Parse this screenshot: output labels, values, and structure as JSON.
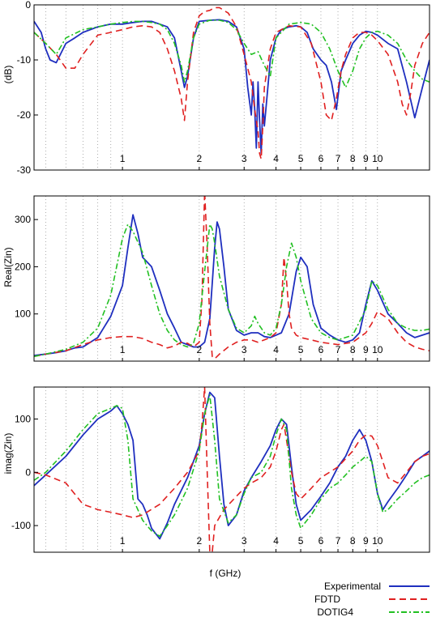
{
  "chart_data": [
    {
      "type": "line",
      "ylabel": "(dB)",
      "xscale": "log",
      "xlim": [
        0.45,
        16
      ],
      "ylim": [
        -30,
        0
      ],
      "yticks": [
        0,
        -10,
        -20,
        -30
      ],
      "xtick_labels": [
        "1",
        "2",
        "3",
        "4",
        "5",
        "6",
        "7",
        "8",
        "9",
        "10"
      ],
      "grid": "vertical dotted",
      "series": [
        {
          "name": "Experimental",
          "color": "#1f2fbf",
          "style": "solid",
          "x": [
            0.45,
            0.48,
            0.5,
            0.52,
            0.55,
            0.6,
            0.65,
            0.7,
            0.8,
            0.9,
            1.0,
            1.1,
            1.2,
            1.3,
            1.4,
            1.5,
            1.6,
            1.7,
            1.75,
            1.8,
            1.9,
            2.0,
            2.2,
            2.4,
            2.6,
            2.8,
            3.0,
            3.1,
            3.2,
            3.25,
            3.3,
            3.35,
            3.4,
            3.45,
            3.5,
            3.55,
            3.6,
            3.7,
            3.8,
            4.0,
            4.2,
            4.5,
            4.8,
            5.0,
            5.3,
            5.6,
            6.0,
            6.3,
            6.6,
            6.9,
            7.2,
            7.5,
            8.0,
            8.5,
            9.0,
            9.5,
            10,
            11,
            12,
            13,
            14,
            15,
            16
          ],
          "y": [
            -3,
            -5,
            -8,
            -10,
            -10.5,
            -7,
            -6,
            -5,
            -4,
            -3.5,
            -3.5,
            -3.2,
            -3,
            -3,
            -3.5,
            -4,
            -6,
            -12,
            -15,
            -13,
            -6,
            -3,
            -2.8,
            -2.7,
            -3,
            -4,
            -8,
            -15,
            -20,
            -14,
            -19,
            -26,
            -14,
            -21,
            -27,
            -18,
            -22,
            -16,
            -10,
            -6,
            -4.5,
            -4,
            -3.8,
            -4,
            -5,
            -8,
            -10,
            -11,
            -14,
            -19,
            -12,
            -10,
            -7,
            -5.5,
            -4.8,
            -5,
            -5.5,
            -7,
            -8,
            -14,
            -20.5,
            -15,
            -10
          ]
        },
        {
          "name": "FDTD",
          "color": "#e02020",
          "style": "dashed",
          "x": [
            0.45,
            0.5,
            0.55,
            0.6,
            0.65,
            0.7,
            0.8,
            0.9,
            1.0,
            1.1,
            1.2,
            1.3,
            1.4,
            1.5,
            1.6,
            1.7,
            1.75,
            1.8,
            1.9,
            2.0,
            2.1,
            2.2,
            2.3,
            2.4,
            2.6,
            2.8,
            3.0,
            3.2,
            3.3,
            3.4,
            3.45,
            3.5,
            3.55,
            3.6,
            3.8,
            4.0,
            4.5,
            5.0,
            5.5,
            6.0,
            6.3,
            6.6,
            6.9,
            7.2,
            7.5,
            8.0,
            8.5,
            9.0,
            9.5,
            10,
            11,
            12,
            12.5,
            13,
            13.5,
            14,
            15,
            16
          ],
          "y": [
            -5,
            -7,
            -9,
            -11.5,
            -11.5,
            -9,
            -5.5,
            -5,
            -4.5,
            -4,
            -3.8,
            -4,
            -5,
            -8,
            -12,
            -17,
            -21,
            -14,
            -5,
            -2,
            -1.2,
            -1,
            -0.5,
            -0.5,
            -1.5,
            -4,
            -9,
            -14,
            -19,
            -23,
            -27,
            -28,
            -22,
            -15,
            -8,
            -5,
            -3.8,
            -4,
            -7,
            -14,
            -20,
            -21,
            -17,
            -12,
            -9,
            -6,
            -5,
            -5,
            -5.5,
            -6.5,
            -9,
            -14,
            -18,
            -20,
            -16,
            -11,
            -7,
            -5
          ]
        },
        {
          "name": "DOTIG4",
          "color": "#22c022",
          "style": "dashdot",
          "x": [
            0.45,
            0.5,
            0.55,
            0.6,
            0.7,
            0.8,
            0.9,
            1.0,
            1.1,
            1.2,
            1.3,
            1.4,
            1.5,
            1.6,
            1.7,
            1.75,
            1.8,
            1.9,
            2.0,
            2.2,
            2.4,
            2.6,
            2.8,
            3.0,
            3.2,
            3.4,
            3.6,
            3.8,
            4.0,
            4.5,
            5.0,
            5.5,
            6.0,
            6.5,
            7.0,
            7.5,
            8.0,
            8.5,
            9.0,
            9.5,
            10,
            11,
            12,
            13,
            14,
            15,
            16
          ],
          "y": [
            -5,
            -7,
            -9,
            -6,
            -4.5,
            -4,
            -3.5,
            -3.2,
            -3,
            -3,
            -3.2,
            -3.5,
            -4.5,
            -7,
            -11,
            -14,
            -12,
            -6,
            -3.5,
            -2.8,
            -2.8,
            -3.2,
            -4.5,
            -7,
            -9,
            -8.5,
            -11,
            -13,
            -6,
            -3.5,
            -3.2,
            -3.5,
            -5,
            -8,
            -12,
            -15,
            -12,
            -8,
            -6,
            -5,
            -4.8,
            -5.5,
            -7,
            -10,
            -12,
            -13.5,
            -14
          ]
        }
      ]
    },
    {
      "type": "line",
      "ylabel": "Real(Zin)",
      "xscale": "log",
      "xlim": [
        0.45,
        16
      ],
      "ylim": [
        0,
        350
      ],
      "yticks": [
        100,
        200,
        300
      ],
      "xtick_labels": [
        "1",
        "2",
        "3",
        "4",
        "5",
        "6",
        "7",
        "8",
        "9",
        "10"
      ],
      "grid": "vertical dotted",
      "series": [
        {
          "name": "Experimental",
          "color": "#1f2fbf",
          "style": "solid",
          "x": [
            0.45,
            0.5,
            0.55,
            0.6,
            0.65,
            0.7,
            0.8,
            0.9,
            1.0,
            1.05,
            1.1,
            1.15,
            1.2,
            1.3,
            1.4,
            1.5,
            1.6,
            1.7,
            1.8,
            1.9,
            2.0,
            2.1,
            2.2,
            2.3,
            2.35,
            2.4,
            2.5,
            2.6,
            2.8,
            3.0,
            3.2,
            3.4,
            3.6,
            3.8,
            4.0,
            4.2,
            4.5,
            4.8,
            5.0,
            5.3,
            5.6,
            6.0,
            6.5,
            7.0,
            7.5,
            8.0,
            8.5,
            9.0,
            9.5,
            10,
            11,
            12,
            13,
            14,
            15,
            16
          ],
          "y": [
            12,
            15,
            18,
            22,
            28,
            30,
            50,
            95,
            160,
            240,
            310,
            270,
            220,
            200,
            150,
            100,
            70,
            40,
            35,
            30,
            30,
            40,
            90,
            240,
            295,
            280,
            200,
            110,
            65,
            55,
            60,
            60,
            52,
            50,
            55,
            60,
            100,
            190,
            220,
            200,
            120,
            70,
            55,
            45,
            40,
            45,
            60,
            120,
            170,
            150,
            100,
            80,
            60,
            50,
            55,
            60
          ]
        },
        {
          "name": "FDTD",
          "color": "#e02020",
          "style": "dashed",
          "x": [
            0.45,
            0.5,
            0.6,
            0.7,
            0.8,
            0.9,
            1.0,
            1.1,
            1.2,
            1.3,
            1.4,
            1.5,
            1.6,
            1.7,
            1.8,
            1.9,
            2.0,
            2.05,
            2.1,
            2.15,
            2.2,
            2.25,
            2.3,
            2.4,
            2.6,
            2.8,
            3.0,
            3.2,
            3.4,
            3.6,
            3.8,
            4.0,
            4.2,
            4.3,
            4.4,
            4.5,
            4.6,
            4.8,
            5.0,
            5.5,
            6.0,
            7.0,
            8.0,
            9.0,
            9.5,
            10,
            11,
            12,
            13,
            14,
            15,
            16
          ],
          "y": [
            10,
            15,
            22,
            35,
            45,
            50,
            52,
            52,
            48,
            40,
            35,
            28,
            32,
            40,
            38,
            30,
            40,
            130,
            360,
            240,
            80,
            10,
            5,
            15,
            30,
            40,
            45,
            45,
            40,
            45,
            50,
            60,
            120,
            220,
            170,
            100,
            70,
            55,
            50,
            45,
            40,
            35,
            40,
            60,
            80,
            105,
            90,
            60,
            40,
            30,
            25,
            22
          ]
        },
        {
          "name": "DOTIG4",
          "color": "#22c022",
          "style": "dashdot",
          "x": [
            0.45,
            0.5,
            0.6,
            0.7,
            0.8,
            0.9,
            1.0,
            1.05,
            1.1,
            1.2,
            1.3,
            1.4,
            1.5,
            1.6,
            1.7,
            1.8,
            1.9,
            2.0,
            2.1,
            2.2,
            2.25,
            2.3,
            2.4,
            2.6,
            2.8,
            3.0,
            3.2,
            3.3,
            3.4,
            3.6,
            3.8,
            4.0,
            4.2,
            4.4,
            4.6,
            4.8,
            5.0,
            5.5,
            6.0,
            6.5,
            7.0,
            8.0,
            9.0,
            9.5,
            10,
            11,
            12,
            13,
            14,
            15,
            16
          ],
          "y": [
            10,
            15,
            25,
            40,
            70,
            140,
            260,
            290,
            275,
            230,
            160,
            100,
            65,
            45,
            35,
            30,
            38,
            80,
            190,
            290,
            280,
            250,
            180,
            110,
            70,
            60,
            75,
            95,
            80,
            60,
            55,
            70,
            120,
            200,
            250,
            220,
            170,
            90,
            60,
            50,
            45,
            55,
            110,
            170,
            160,
            110,
            80,
            70,
            65,
            65,
            68
          ]
        }
      ]
    },
    {
      "type": "line",
      "ylabel": "imag(Zin)",
      "xlabel": "f  (GHz)",
      "xscale": "log",
      "xlim": [
        0.45,
        16
      ],
      "ylim": [
        -150,
        160
      ],
      "yticks": [
        100,
        0,
        -100
      ],
      "xtick_labels": [
        "1",
        "2",
        "3",
        "4",
        "5",
        "6",
        "7",
        "8",
        "9",
        "10"
      ],
      "grid": "vertical dotted",
      "series": [
        {
          "name": "Experimental",
          "color": "#1f2fbf",
          "style": "solid",
          "x": [
            0.45,
            0.5,
            0.6,
            0.7,
            0.8,
            0.9,
            0.95,
            1.0,
            1.05,
            1.1,
            1.15,
            1.2,
            1.25,
            1.3,
            1.4,
            1.5,
            1.6,
            1.8,
            2.0,
            2.1,
            2.2,
            2.3,
            2.4,
            2.5,
            2.6,
            2.8,
            3.0,
            3.2,
            3.5,
            3.8,
            4.0,
            4.2,
            4.4,
            4.6,
            4.8,
            5.0,
            5.5,
            6.0,
            6.5,
            7.0,
            7.5,
            8.0,
            8.5,
            9.0,
            9.5,
            10,
            10.5,
            11,
            12,
            13,
            14,
            15,
            16
          ],
          "y": [
            -25,
            -5,
            30,
            70,
            100,
            115,
            125,
            110,
            90,
            60,
            -50,
            -60,
            -80,
            -105,
            -125,
            -95,
            -60,
            -10,
            50,
            110,
            150,
            140,
            30,
            -60,
            -100,
            -80,
            -35,
            -10,
            20,
            50,
            80,
            100,
            90,
            10,
            -60,
            -90,
            -70,
            -45,
            -20,
            10,
            30,
            60,
            80,
            60,
            20,
            -40,
            -70,
            -55,
            -30,
            -5,
            20,
            30,
            40
          ]
        },
        {
          "name": "FDTD",
          "color": "#e02020",
          "style": "dashed",
          "x": [
            0.45,
            0.5,
            0.6,
            0.7,
            0.75,
            0.8,
            0.9,
            1.0,
            1.1,
            1.2,
            1.4,
            1.6,
            1.8,
            2.0,
            2.05,
            2.1,
            2.15,
            2.2,
            2.25,
            2.3,
            2.5,
            2.8,
            3.0,
            3.2,
            3.5,
            3.8,
            4.0,
            4.2,
            4.3,
            4.4,
            4.6,
            4.8,
            5.0,
            5.5,
            6.0,
            7.0,
            8.0,
            8.5,
            9.0,
            9.5,
            10,
            10.5,
            11,
            12,
            13,
            14,
            15,
            16
          ],
          "y": [
            0,
            -5,
            -20,
            -60,
            -65,
            -70,
            -75,
            -80,
            -85,
            -80,
            -60,
            -30,
            0,
            40,
            90,
            160,
            0,
            -150,
            -150,
            -100,
            -70,
            -45,
            -30,
            -20,
            -10,
            10,
            40,
            80,
            90,
            60,
            0,
            -40,
            -50,
            -30,
            -10,
            10,
            40,
            60,
            70,
            68,
            50,
            20,
            -10,
            -20,
            0,
            20,
            30,
            35
          ]
        },
        {
          "name": "DOTIG4",
          "color": "#22c022",
          "style": "dashdot",
          "x": [
            0.45,
            0.5,
            0.6,
            0.7,
            0.8,
            0.9,
            0.95,
            1.0,
            1.05,
            1.1,
            1.2,
            1.3,
            1.4,
            1.5,
            1.6,
            1.8,
            2.0,
            2.1,
            2.2,
            2.3,
            2.4,
            2.6,
            2.8,
            3.0,
            3.2,
            3.5,
            3.8,
            4.0,
            4.2,
            4.4,
            4.6,
            4.8,
            5.0,
            5.5,
            6.0,
            6.5,
            7.0,
            7.5,
            8.0,
            8.5,
            9.0,
            9.5,
            10,
            10.5,
            11,
            12,
            13,
            14,
            15,
            16
          ],
          "y": [
            -15,
            0,
            40,
            80,
            110,
            120,
            125,
            120,
            60,
            -50,
            -90,
            -110,
            -120,
            -100,
            -80,
            -30,
            40,
            110,
            145,
            60,
            -50,
            -95,
            -80,
            -40,
            -10,
            0,
            30,
            70,
            100,
            80,
            -30,
            -80,
            -105,
            -80,
            -50,
            -30,
            -20,
            -5,
            10,
            20,
            30,
            20,
            -40,
            -75,
            -70,
            -50,
            -35,
            -20,
            -10,
            -5
          ]
        }
      ]
    }
  ]
}
